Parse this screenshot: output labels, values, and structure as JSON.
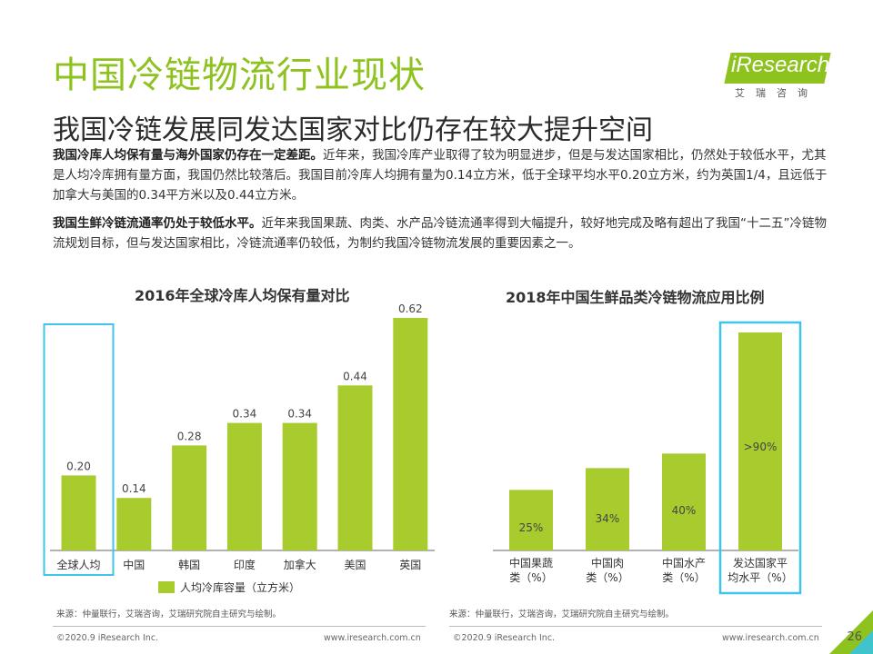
{
  "header": {
    "title": "中国冷链物流行业现状",
    "subtitle": "我国冷链发展同发达国家对比仍存在较大提升空间",
    "logo_text": "iResearch",
    "logo_sub": "艾瑞咨询"
  },
  "paragraphs": [
    {
      "bold": "我国冷库人均保有量与海外国家仍存在一定差距。",
      "text": "近年来，我国冷库产业取得了较为明显进步，但是与发达国家相比，仍然处于较低水平，尤其是人均冷库拥有量方面，我国仍然比较落后。我国目前冷库人均拥有量为0.14立方米，低于全球平均水平0.20立方米，约为英国1/4，且远低于加拿大与美国的0.34平方米以及0.44立方米。"
    },
    {
      "bold": "我国生鲜冷链流通率仍处于较低水平。",
      "text": "近年来我国果蔬、肉类、水产品冷链流通率得到大幅提升，较好地完成及略有超出了我国“十二五”冷链物流规划目标，但与发达国家相比，冷链流通率仍较低，为制约我国冷链物流发展的重要因素之一。"
    }
  ],
  "chart_data": [
    {
      "type": "bar",
      "title": "2016年全球冷库人均保有量对比",
      "categories": [
        "全球人均",
        "中国",
        "韩国",
        "印度",
        "加拿大",
        "美国",
        "英国"
      ],
      "values": [
        0.2,
        0.14,
        0.28,
        0.34,
        0.34,
        0.44,
        0.62
      ],
      "labels": [
        "0.20",
        "0.14",
        "0.28",
        "0.34",
        "0.34",
        "0.44",
        "0.62"
      ],
      "series": [
        {
          "name": "人均冷库容量（立方米）",
          "values": [
            0.2,
            0.14,
            0.28,
            0.34,
            0.34,
            0.44,
            0.62
          ]
        }
      ],
      "legend": "bottom",
      "highlight_index": 0,
      "color": "#a8cc2e"
    },
    {
      "type": "bar",
      "title": "2018年中国生鲜品类冷链物流应用比例",
      "categories": [
        [
          "中国果蔬",
          "类（%）"
        ],
        [
          "中国肉",
          "类（%）"
        ],
        [
          "中国水产",
          "类（%）"
        ],
        [
          "发达国家平",
          "均水平（%）"
        ]
      ],
      "values": [
        25,
        34,
        40,
        90
      ],
      "labels": [
        "25%",
        "34%",
        "40%",
        ">90%"
      ],
      "highlight_index": 3,
      "color": "#a8cc2e"
    }
  ],
  "sources": {
    "left": "来源：仲量联行，艾瑞咨询，艾瑞研究院自主研究与绘制。",
    "right": "来源：仲量联行，艾瑞咨询，艾瑞研究院自主研究与绘制。"
  },
  "footer": {
    "copyright_left": "©2020.9 iResearch Inc.",
    "url_left": "www.iresearch.com.cn",
    "copyright_right": "©2020.9 iResearch Inc.",
    "url_right": "www.iresearch.com.cn",
    "page": "26"
  },
  "colors": {
    "brand": "#8dc21f",
    "bar": "#a8cc2e",
    "highlight": "#3fc4ea"
  }
}
